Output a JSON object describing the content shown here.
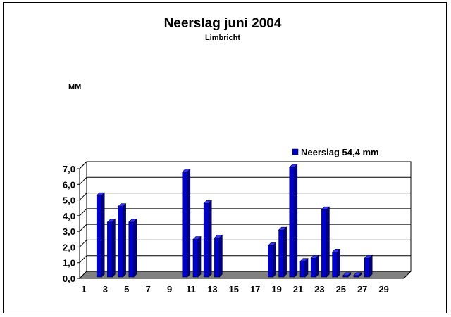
{
  "chart_data": {
    "type": "bar",
    "title": "Neerslag juni 2004",
    "subtitle": "Limbricht",
    "ylabel": "MM",
    "ylim": [
      0,
      7
    ],
    "yticks": [
      "0,0",
      "1,0",
      "2,0",
      "3,0",
      "4,0",
      "5,0",
      "6,0",
      "7,0"
    ],
    "xticks": [
      "1",
      "3",
      "5",
      "7",
      "9",
      "11",
      "13",
      "15",
      "17",
      "19",
      "21",
      "23",
      "25",
      "27",
      "29"
    ],
    "grid": true,
    "legend_position": "top-right",
    "bar_color": "#0000cc",
    "floor_color": "#808080",
    "categories": [
      "1",
      "2",
      "3",
      "4",
      "5",
      "6",
      "7",
      "8",
      "9",
      "10",
      "11",
      "12",
      "13",
      "14",
      "15",
      "16",
      "17",
      "18",
      "19",
      "20",
      "21",
      "22",
      "23",
      "24",
      "25",
      "26",
      "27",
      "28",
      "29",
      "30"
    ],
    "series": [
      {
        "name": "Neerslag 54,4 mm",
        "values": [
          0,
          5.2,
          3.5,
          4.5,
          3.5,
          0,
          0,
          0,
          0,
          6.7,
          2.4,
          4.7,
          2.5,
          0,
          0,
          0,
          0,
          2.0,
          3.0,
          7.0,
          1.0,
          1.2,
          4.3,
          1.6,
          0.1,
          0.1,
          1.2,
          0,
          0,
          0
        ]
      }
    ]
  }
}
